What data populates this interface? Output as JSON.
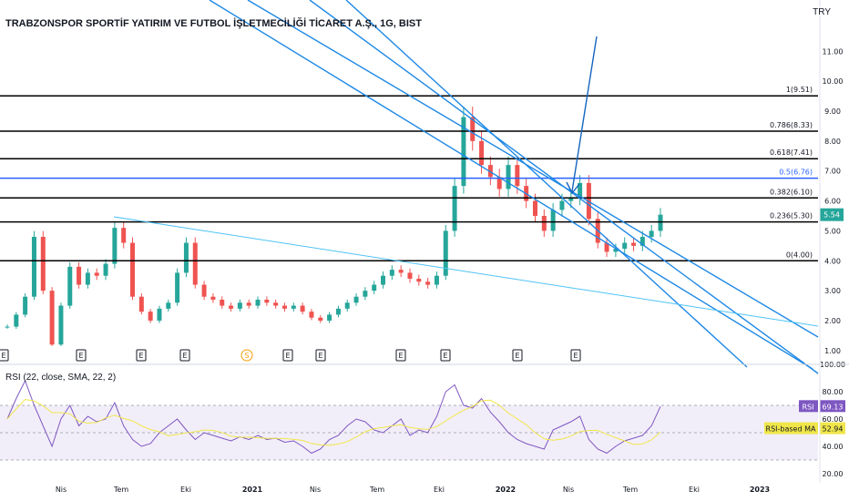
{
  "header": {
    "title": "TRABZONSPOR SPORTİF YATIRIM VE FUTBOL İŞLETMECİLİĞİ TİCARET A.Ş., 1G, BIST",
    "currency": "TRY"
  },
  "colors": {
    "price_tag": "#26a69a",
    "fib_line": "#000000",
    "fib_mid_line": "#2962ff",
    "channel": "#1e88e5",
    "candle_up": "#26a69a",
    "candle_down": "#ef5350",
    "rsi_line": "#7e57c2",
    "rsi_ma": "#f0e64a",
    "rsi_band": "#ede7f6"
  },
  "price_axis": {
    "ticks": [
      "1.00",
      "2.00",
      "3.00",
      "4.00",
      "5.00",
      "6.00",
      "7.00",
      "8.00",
      "9.00",
      "10.00",
      "11.00"
    ],
    "current_price": "5.54"
  },
  "fib_levels": [
    {
      "label": "1(9.51)",
      "value": 9.51
    },
    {
      "label": "0.786(8.33)",
      "value": 8.33
    },
    {
      "label": "0.618(7.41)",
      "value": 7.41
    },
    {
      "label": "0.5(6.76)",
      "value": 6.76
    },
    {
      "label": "0.382(6.10)",
      "value": 6.1
    },
    {
      "label": "0.236(5.30)",
      "value": 5.3
    },
    {
      "label": "0(4.00)",
      "value": 4.0
    }
  ],
  "time_axis": {
    "labels": [
      "Nis",
      "Tem",
      "Eki",
      "2021",
      "Nis",
      "Tem",
      "Eki",
      "2022",
      "Nis",
      "Tem",
      "Eki",
      "2023"
    ],
    "bold": [
      "2021",
      "2022",
      "2023"
    ]
  },
  "events": [
    {
      "label": "E"
    },
    {
      "label": "E"
    },
    {
      "label": "E"
    },
    {
      "label": "E"
    },
    {
      "label": "S"
    },
    {
      "label": "E"
    },
    {
      "label": "E"
    },
    {
      "label": "E"
    },
    {
      "label": "E"
    },
    {
      "label": "E"
    },
    {
      "label": "E"
    }
  ],
  "rsi": {
    "title": "RSI (22, close, SMA, 22, 2)",
    "ticks": [
      "100.00",
      "80.00",
      "60.00",
      "40.00",
      "20.00"
    ],
    "value_label": "RSI",
    "value": "69.13",
    "ma_label": "RSI-based MA",
    "ma_value": "52.94"
  },
  "chart_data": {
    "type": "line",
    "price_series_approx": [
      [
        1.8,
        2.2,
        2.8,
        4.8,
        3.0,
        1.2,
        2.5,
        3.8,
        3.2,
        3.6,
        3.5,
        3.9,
        5.1,
        4.6,
        2.8,
        2.3,
        2.0,
        2.4,
        2.6,
        3.6,
        4.6,
        3.2,
        2.8,
        2.7,
        2.5,
        2.4,
        2.6,
        2.5,
        2.7,
        2.6,
        2.5,
        2.4,
        2.5,
        2.3,
        2.1,
        2.0,
        2.2,
        2.4,
        2.6,
        2.8,
        3.0,
        3.2,
        3.5,
        3.7,
        3.6,
        3.4,
        3.3,
        3.2,
        3.5,
        5.0,
        6.5,
        8.8,
        8.0,
        7.2,
        6.8,
        6.4,
        7.2,
        6.5,
        6.0,
        5.5,
        5.0,
        5.7,
        6.0,
        6.1,
        6.6,
        5.4,
        4.6,
        4.3,
        4.4,
        4.6,
        4.5,
        4.8,
        5.0,
        5.54
      ]
    ],
    "rsi_series_approx": [
      [
        60,
        75,
        88,
        70,
        55,
        40,
        60,
        70,
        55,
        62,
        58,
        60,
        72,
        55,
        45,
        40,
        42,
        50,
        55,
        60,
        52,
        45,
        50,
        48,
        46,
        44,
        47,
        45,
        48,
        45,
        46,
        43,
        44,
        40,
        35,
        38,
        45,
        48,
        55,
        60,
        58,
        52,
        50,
        55,
        60,
        48,
        52,
        50,
        62,
        80,
        85,
        70,
        68,
        75,
        65,
        58,
        50,
        45,
        42,
        40,
        38,
        52,
        55,
        58,
        62,
        45,
        38,
        35,
        40,
        44,
        46,
        48,
        55,
        69.13
      ]
    ],
    "price_ylim": [
      0.6,
      11.8
    ],
    "rsi_ylim": [
      20,
      100
    ],
    "rsi_overbought": 70,
    "rsi_oversold": 30
  }
}
